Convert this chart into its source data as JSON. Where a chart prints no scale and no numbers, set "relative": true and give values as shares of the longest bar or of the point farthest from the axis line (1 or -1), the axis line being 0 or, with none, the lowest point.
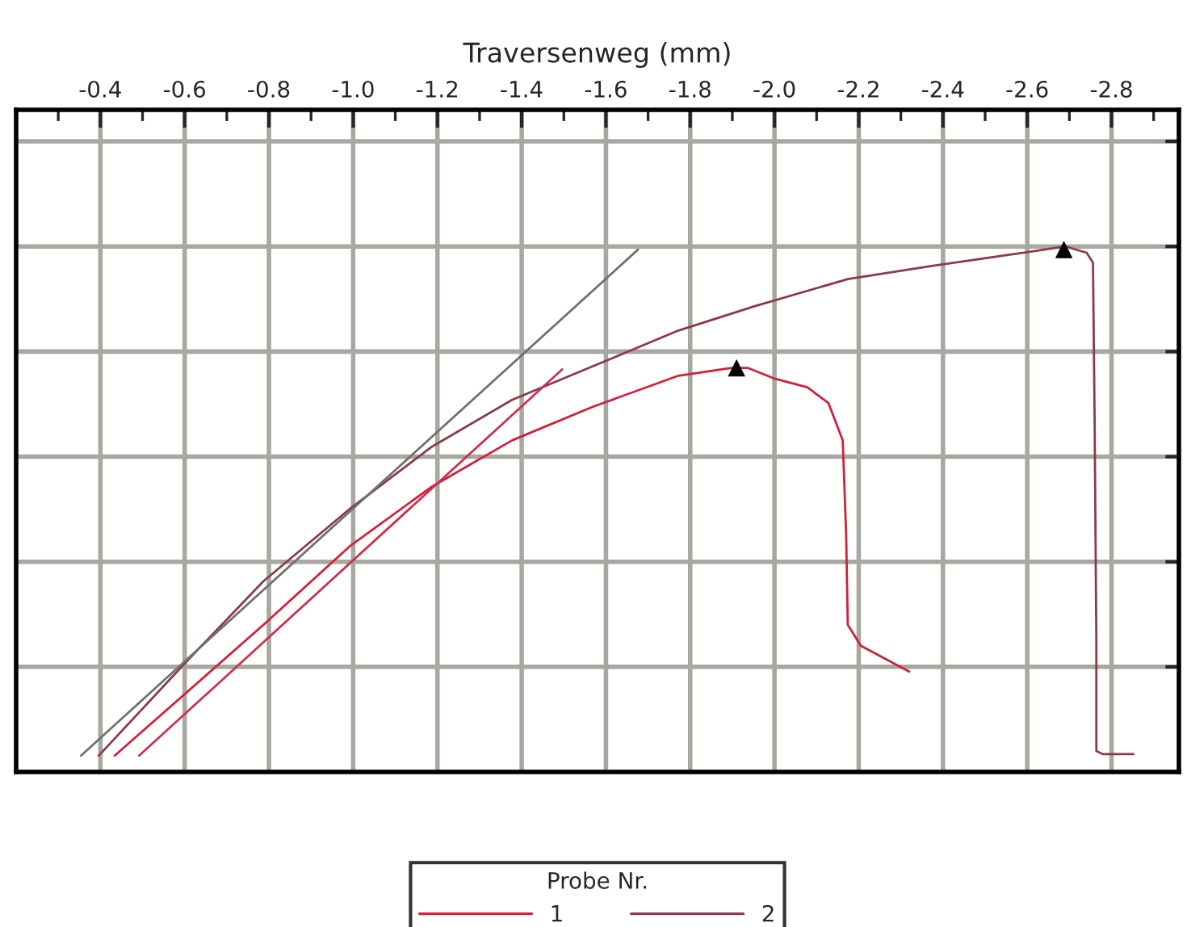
{
  "chart_data": {
    "type": "line",
    "relative": true,
    "xlabel": "Traversenweg (mm)",
    "legend_title": "Probe Nr.",
    "xlim": [
      -0.2,
      -2.96
    ],
    "xticks": [
      {
        "value": -0.4,
        "label": "-0.4"
      },
      {
        "value": -0.6,
        "label": "-0.6"
      },
      {
        "value": -0.8,
        "label": "-0.8"
      },
      {
        "value": -1.0,
        "label": "-1.0"
      },
      {
        "value": -1.2,
        "label": "-1.2"
      },
      {
        "value": -1.4,
        "label": "-1.4"
      },
      {
        "value": -1.6,
        "label": "-1.6"
      },
      {
        "value": -1.8,
        "label": "-1.8"
      },
      {
        "value": -2.0,
        "label": "-2.0"
      },
      {
        "value": -2.2,
        "label": "-2.2"
      },
      {
        "value": -2.4,
        "label": "-2.4"
      },
      {
        "value": -2.6,
        "label": "-2.6"
      },
      {
        "value": -2.8,
        "label": "-2.8"
      }
    ],
    "grid": true,
    "legend": "bottom",
    "tick_labels": "x",
    "marker": "none",
    "line_style": "solid",
    "series": [
      {
        "name": "1",
        "color": "#d0203a",
        "x": [
          -0.434,
          -0.787,
          -0.994,
          -1.185,
          -1.377,
          -1.569,
          -1.772,
          -1.898,
          -1.936,
          -2.002,
          -2.078,
          -2.128,
          -2.162,
          -2.17,
          -2.174,
          -2.205,
          -2.32
        ],
        "values": [
          0.031,
          0.28,
          0.431,
          0.542,
          0.631,
          0.695,
          0.754,
          0.769,
          0.769,
          0.748,
          0.732,
          0.702,
          0.631,
          0.455,
          0.28,
          0.24,
          0.191
        ]
      },
      {
        "name": "2",
        "color": "#8b3a4a",
        "x": [
          -0.396,
          -0.603,
          -0.787,
          -0.994,
          -1.185,
          -1.377,
          -1.569,
          -1.772,
          -1.952,
          -2.174,
          -2.373,
          -2.565,
          -2.691,
          -2.741,
          -2.756,
          -2.76,
          -2.764,
          -2.764,
          -2.779,
          -2.852
        ],
        "values": [
          0.031,
          0.209,
          0.363,
          0.502,
          0.618,
          0.708,
          0.772,
          0.84,
          0.886,
          0.938,
          0.963,
          0.985,
          1.0,
          0.988,
          0.969,
          0.662,
          0.249,
          0.04,
          0.034,
          0.034
        ]
      },
      {
        "color": "#707070",
        "x": [
          -0.354,
          -1.676
        ],
        "values": [
          0.031,
          0.994
        ]
      },
      {
        "color": "#c83250",
        "x": [
          -0.492,
          -1.496
        ],
        "values": [
          0.031,
          0.766
        ]
      },
      {
        "type": "scatter",
        "marker": "triangle",
        "color": "#000000",
        "x": [
          -1.91,
          -2.687
        ],
        "values": [
          0.769,
          0.994
        ]
      }
    ]
  }
}
